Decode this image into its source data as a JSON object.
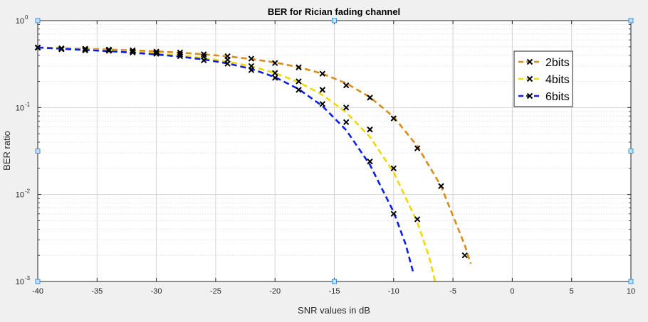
{
  "chart_data": {
    "type": "line",
    "title": "BER for Rician fading channel",
    "xlabel": "SNR values in dB",
    "ylabel": "BER ratio",
    "xlim": [
      -40,
      10
    ],
    "ylim": [
      0.001,
      1
    ],
    "yscale": "log",
    "grid": true,
    "minor_grid": true,
    "legend_position": "top-right",
    "x_ticks": [
      -40,
      -35,
      -30,
      -25,
      -20,
      -15,
      -10,
      -5,
      0,
      5,
      10
    ],
    "x_tick_labels": [
      "-40",
      "-35",
      "-30",
      "-25",
      "-20",
      "-15",
      "-10",
      "-5",
      "0",
      "5",
      "10"
    ],
    "y_ticks": [
      0.001,
      0.01,
      0.1,
      1
    ],
    "y_tick_labels": [
      {
        "base": "10",
        "exp": "-3"
      },
      {
        "base": "10",
        "exp": "-2"
      },
      {
        "base": "10",
        "exp": "-1"
      },
      {
        "base": "10",
        "exp": "0"
      }
    ],
    "series": [
      {
        "name": "2bits",
        "color": "#d98c1a",
        "line_style": "dashed",
        "markers": {
          "x": [
            -40,
            -38,
            -36,
            -34,
            -32,
            -30,
            -28,
            -26,
            -24,
            -22,
            -20,
            -18,
            -16,
            -14,
            -12,
            -10,
            -8,
            -6,
            -4
          ],
          "y": [
            0.49,
            0.48,
            0.475,
            0.465,
            0.455,
            0.44,
            0.43,
            0.41,
            0.39,
            0.365,
            0.325,
            0.29,
            0.245,
            0.18,
            0.13,
            0.075,
            0.034,
            0.0125,
            0.002
          ]
        },
        "curve": {
          "x": [
            -40,
            -38,
            -36,
            -34,
            -32,
            -30,
            -28,
            -26,
            -24,
            -22,
            -20,
            -18,
            -16,
            -14,
            -12,
            -10,
            -8,
            -6,
            -4,
            -3.5
          ],
          "y": [
            0.49,
            0.482,
            0.474,
            0.465,
            0.455,
            0.443,
            0.428,
            0.41,
            0.388,
            0.362,
            0.33,
            0.292,
            0.245,
            0.19,
            0.132,
            0.078,
            0.036,
            0.0125,
            0.0026,
            0.0016
          ]
        }
      },
      {
        "name": "4bits",
        "color": "#f0d800",
        "line_style": "dashed",
        "markers": {
          "x": [
            -40,
            -38,
            -36,
            -34,
            -32,
            -30,
            -28,
            -26,
            -24,
            -22,
            -20,
            -18,
            -16,
            -14,
            -12,
            -10,
            -8
          ],
          "y": [
            0.49,
            0.47,
            0.465,
            0.455,
            0.44,
            0.425,
            0.41,
            0.385,
            0.355,
            0.3,
            0.25,
            0.2,
            0.16,
            0.1,
            0.056,
            0.02,
            0.0052
          ]
        },
        "curve": {
          "x": [
            -40,
            -38,
            -36,
            -34,
            -32,
            -30,
            -28,
            -26,
            -24,
            -22,
            -20,
            -18,
            -16,
            -14,
            -12,
            -10,
            -8,
            -7,
            -6.5
          ],
          "y": [
            0.49,
            0.478,
            0.466,
            0.452,
            0.437,
            0.418,
            0.397,
            0.37,
            0.338,
            0.298,
            0.25,
            0.196,
            0.14,
            0.088,
            0.046,
            0.018,
            0.0048,
            0.0019,
            0.001
          ]
        }
      },
      {
        "name": "6bits",
        "color": "#0a1ee6",
        "line_style": "dashed",
        "markers": {
          "x": [
            -40,
            -38,
            -36,
            -34,
            -32,
            -30,
            -28,
            -26,
            -24,
            -22,
            -20,
            -18,
            -16,
            -14,
            -12,
            -10
          ],
          "y": [
            0.49,
            0.47,
            0.455,
            0.45,
            0.43,
            0.415,
            0.39,
            0.35,
            0.32,
            0.27,
            0.22,
            0.16,
            0.11,
            0.068,
            0.024,
            0.006
          ]
        },
        "curve": {
          "x": [
            -40,
            -38,
            -36,
            -34,
            -32,
            -30,
            -28,
            -26,
            -24,
            -22,
            -20,
            -18,
            -16,
            -14,
            -12,
            -10,
            -9,
            -8.3
          ],
          "y": [
            0.49,
            0.475,
            0.46,
            0.445,
            0.428,
            0.408,
            0.385,
            0.357,
            0.322,
            0.278,
            0.224,
            0.163,
            0.104,
            0.055,
            0.022,
            0.0063,
            0.0027,
            0.0012
          ]
        }
      }
    ]
  },
  "colors": {
    "figure_background": "#f0f0f0",
    "axes_background": "#ffffff",
    "marker_color": "#000000",
    "handle_color": "#3a8fd8"
  }
}
